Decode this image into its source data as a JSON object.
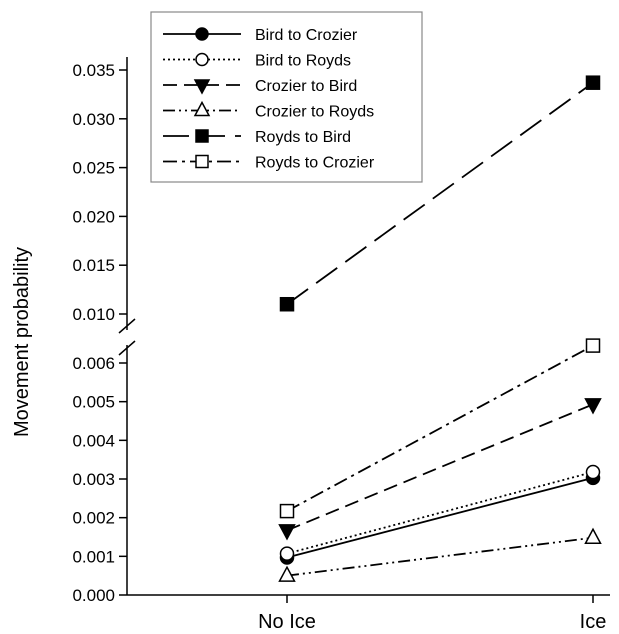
{
  "chart_data": {
    "type": "line",
    "title": "",
    "xlabel": "",
    "ylabel": "Movement probability",
    "categories": [
      "No Ice",
      "Ice"
    ],
    "y_axis_broken": true,
    "upper_segment": {
      "ylim": [
        0.0095,
        0.035
      ],
      "ticks": [
        "0.010",
        "0.015",
        "0.020",
        "0.025",
        "0.030",
        "0.035"
      ]
    },
    "lower_segment": {
      "ylim": [
        0.0,
        0.0062
      ],
      "ticks": [
        "0.000",
        "0.001",
        "0.002",
        "0.003",
        "0.004",
        "0.005",
        "0.006"
      ]
    },
    "series": [
      {
        "name": "Bird to Crozier",
        "values": [
          0.00097,
          0.00303
        ],
        "marker": "circle",
        "filled": true,
        "dash": "solid"
      },
      {
        "name": "Bird to Royds",
        "values": [
          0.00107,
          0.00318
        ],
        "marker": "circle",
        "filled": false,
        "dash": "dotted"
      },
      {
        "name": "Crozier to Bird",
        "values": [
          0.00167,
          0.00493
        ],
        "marker": "triangle-down",
        "filled": true,
        "dash": "dashed"
      },
      {
        "name": "Crozier to Royds",
        "values": [
          0.0005,
          0.00148
        ],
        "marker": "triangle-up",
        "filled": false,
        "dash": "dash-dot-dot"
      },
      {
        "name": "Royds to Bird",
        "values": [
          0.011,
          0.0337
        ],
        "marker": "square",
        "filled": true,
        "dash": "long-dash"
      },
      {
        "name": "Royds to Crozier",
        "values": [
          0.00217,
          0.00645
        ],
        "marker": "square",
        "filled": false,
        "dash": "dash-dot"
      }
    ],
    "legend_position": "top-left",
    "grid": false
  }
}
